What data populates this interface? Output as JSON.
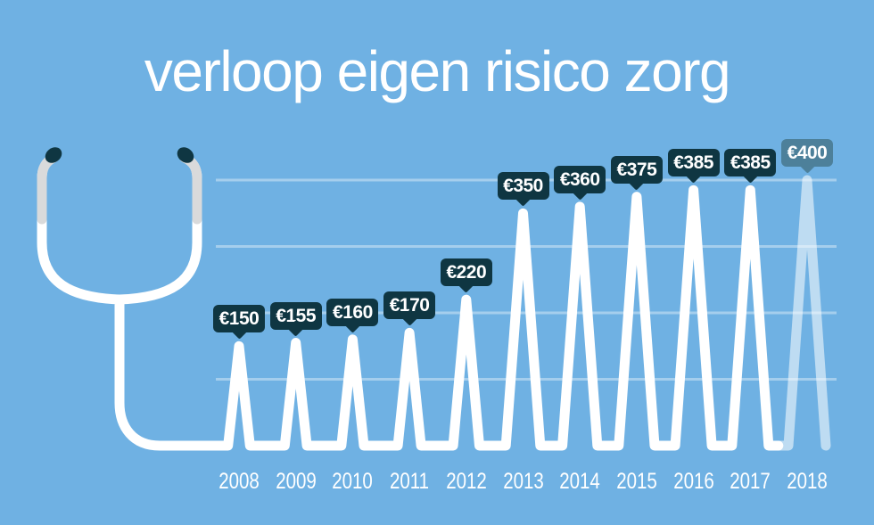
{
  "page": {
    "title": "verloop eigen risico zorg"
  },
  "chart_data": {
    "type": "line",
    "title": "verloop eigen risico zorg",
    "subtitle": "",
    "unit": "EUR",
    "categories": [
      "2008",
      "2009",
      "2010",
      "2011",
      "2012",
      "2013",
      "2014",
      "2015",
      "2016",
      "2017",
      "2018"
    ],
    "values": [
      150,
      155,
      160,
      170,
      220,
      350,
      360,
      375,
      385,
      385,
      400
    ],
    "labels": [
      "€150",
      "€155",
      "€160",
      "€170",
      "€220",
      "€350",
      "€360",
      "€375",
      "€385",
      "€385",
      "€400"
    ],
    "projected_categories": [
      "2018"
    ],
    "ylim": [
      0,
      400
    ],
    "gridlines": [
      100,
      200,
      300,
      400
    ],
    "legend": "none",
    "xlabel": "",
    "ylabel": "",
    "colors": {
      "background": "#6fb1e3",
      "line": "#ffffff",
      "projected_line": "rgba(255,255,255,0.55)",
      "gridline": "rgba(255,255,255,0.38)",
      "tag_background": "#0f3642",
      "tag_projected_background": "#4d809a",
      "tag_text": "#ffffff",
      "ear_tip": "#0f3642",
      "tube_gray": "#d9dadb"
    }
  }
}
